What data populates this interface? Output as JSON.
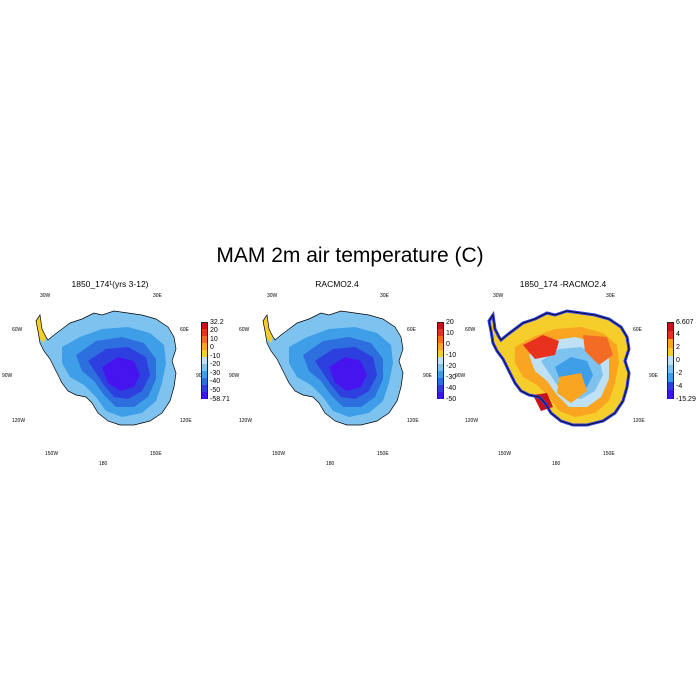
{
  "title": "MAM 2m air temperature (C)",
  "panels": [
    {
      "title": "1850_174¹(yrs 3-12)",
      "colorbar": {
        "labels": [
          "32.2",
          "20",
          "10",
          "0",
          "-10",
          "-20",
          "-30",
          "-40",
          "-50",
          "-58.71"
        ],
        "colors": [
          "#c8121a",
          "#e8321d",
          "#f36b24",
          "#f9a521",
          "#f6ce2b",
          "#bfe1f5",
          "#7ec3ef",
          "#3e9ee8",
          "#2d6fdf",
          "#2e3fe0",
          "#3b16f2"
        ]
      },
      "lon_labels": {
        "w30": "30W",
        "e30": "30E",
        "w60": "60W",
        "e60": "60E",
        "w90": "90W",
        "e90": "90E",
        "w120": "120W",
        "e120": "120E",
        "w150": "150W",
        "e150": "150E",
        "s180": "180"
      },
      "shades": [
        "#7ec3ef",
        "#3e9ee8",
        "#2d6fdf",
        "#2e3fe0",
        "#4514ef"
      ]
    },
    {
      "title": "RACMO2.4",
      "colorbar": {
        "labels": [
          "20",
          "10",
          "0",
          "-10",
          "-20",
          "-30",
          "-40",
          "-50"
        ],
        "colors": [
          "#c8121a",
          "#e8321d",
          "#f36b24",
          "#f9a521",
          "#f6ce2b",
          "#bfe1f5",
          "#7ec3ef",
          "#3e9ee8",
          "#2d6fdf",
          "#2e3fe0",
          "#3b16f2"
        ]
      },
      "lon_labels": {
        "w30": "30W",
        "e30": "30E",
        "w60": "60W",
        "e60": "60E",
        "w90": "90W",
        "e90": "90E",
        "w120": "120W",
        "e120": "120E",
        "w150": "150W",
        "e150": "150E",
        "s180": "180"
      },
      "shades": [
        "#7ec3ef",
        "#3e9ee8",
        "#2d6fdf",
        "#2e3fe0",
        "#4514ef"
      ]
    },
    {
      "title": "1850_174 -RACMO2.4",
      "colorbar": {
        "labels": [
          "6.607",
          "4",
          "2",
          "0",
          "-2",
          "-4",
          "-15.29"
        ],
        "colors": [
          "#c8121a",
          "#e8321d",
          "#f9a521",
          "#f6ce2b",
          "#bfe1f5",
          "#7ec3ef",
          "#3e9ee8",
          "#2e3fe0",
          "#3b16f2"
        ]
      },
      "lon_labels": {
        "w30": "30W",
        "e30": "30E",
        "w60": "60W",
        "e60": "60E",
        "w90": "90W",
        "e90": "90E",
        "w120": "120W",
        "e120": "120E",
        "w150": "150W",
        "e150": "150E",
        "s180": "180"
      },
      "shades": [
        "#f6ce2b",
        "#f9a521",
        "#bfe1f5",
        "#7ec3ef",
        "#3e9ee8"
      ]
    }
  ]
}
